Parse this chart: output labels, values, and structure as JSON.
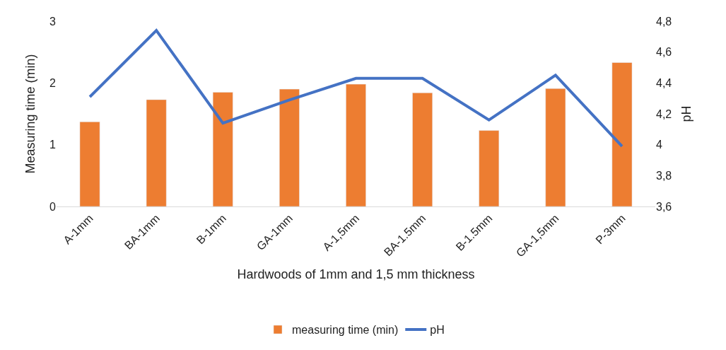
{
  "chart_data": {
    "type": "bar",
    "xlabel": "Hardwoods of 1mm and 1,5 mm thickness",
    "ylabel": "Measuring time (min)",
    "y2label": "pH",
    "categories": [
      "A-1mm",
      "BA-1mm",
      "B-1mm",
      "GA-1mm",
      "A-1,5mm",
      "BA-1.5mm",
      "B-1.5mm",
      "GA-1,5mm",
      "P-3mm"
    ],
    "series": [
      {
        "name": "measuring time (min)",
        "color": "#ed7d31",
        "values": [
          1.37,
          1.73,
          1.85,
          1.9,
          1.98,
          1.84,
          1.23,
          1.91,
          2.33
        ]
      },
      {
        "name": "pH",
        "type": "line",
        "axis": "y2",
        "color": "#4472c4",
        "values": [
          4.31,
          4.74,
          4.14,
          4.29,
          4.43,
          4.43,
          4.16,
          4.45,
          3.99
        ]
      }
    ],
    "ylim": [
      0,
      3
    ],
    "yticks": [
      0,
      1,
      2,
      3
    ],
    "y2lim": [
      3.6,
      4.8
    ],
    "y2ticks": [
      {
        "value": 3.6,
        "label": "3,6"
      },
      {
        "value": 3.8,
        "label": "3,8"
      },
      {
        "value": 4,
        "label": "4"
      },
      {
        "value": 4.2,
        "label": "4,2"
      },
      {
        "value": 4.4,
        "label": "4,4"
      },
      {
        "value": 4.6,
        "label": "4,6"
      },
      {
        "value": 4.8,
        "label": "4,8"
      }
    ],
    "grid": false,
    "legend": "bottom",
    "marker": "none",
    "line_style": "solid"
  }
}
